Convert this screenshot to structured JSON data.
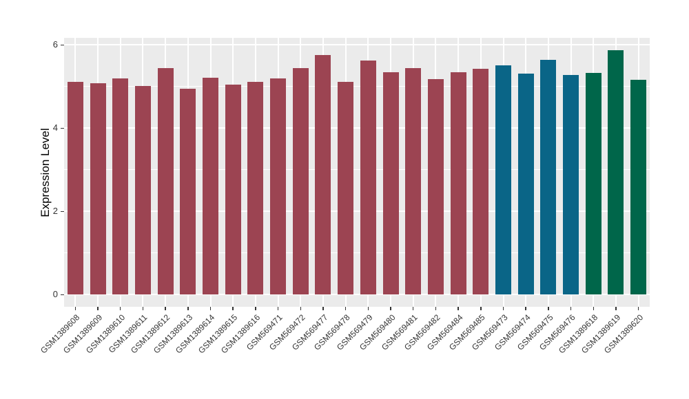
{
  "chart_data": {
    "type": "bar",
    "ylabel": "Expression Level",
    "xlabel": "",
    "categories": [
      "GSM1389608",
      "GSM1389609",
      "GSM1389610",
      "GSM1389611",
      "GSM1389612",
      "GSM1389613",
      "GSM1389614",
      "GSM1389615",
      "GSM1389616",
      "GSM569471",
      "GSM569472",
      "GSM569477",
      "GSM569478",
      "GSM569479",
      "GSM569480",
      "GSM569481",
      "GSM569482",
      "GSM569484",
      "GSM569485",
      "GSM569473",
      "GSM569474",
      "GSM569475",
      "GSM569476",
      "GSM1389618",
      "GSM1389619",
      "GSM1389620"
    ],
    "values": [
      5.12,
      5.08,
      5.19,
      5.02,
      5.45,
      4.94,
      5.21,
      5.05,
      5.11,
      5.2,
      5.44,
      5.75,
      5.12,
      5.62,
      5.35,
      5.44,
      5.18,
      5.35,
      5.43,
      5.51,
      5.31,
      5.64,
      5.28,
      5.33,
      5.88,
      5.16
    ],
    "groups": [
      "darkred",
      "darkred",
      "darkred",
      "darkred",
      "darkred",
      "darkred",
      "darkred",
      "darkred",
      "darkred",
      "darkred",
      "darkred",
      "darkred",
      "darkred",
      "darkred",
      "darkred",
      "darkred",
      "darkred",
      "darkred",
      "darkred",
      "blue",
      "blue",
      "blue",
      "blue",
      "green",
      "green",
      "green"
    ],
    "group_colors": {
      "darkred": "#9C4452",
      "blue": "#0A6587",
      "green": "#00664A"
    },
    "yticks": [
      0,
      2,
      4,
      6
    ],
    "minor_yticks": [
      1,
      3,
      5
    ],
    "y_axis_range": [
      -0.29,
      6.17
    ],
    "legend": "none",
    "grid": "on",
    "panel_bg": "#EBEBEB",
    "grid_color": "#FFFFFF",
    "tick_color": "#333333",
    "axis_text_color": "#333333",
    "axis_title_color": "#000000",
    "background": "#FFFFFF"
  }
}
